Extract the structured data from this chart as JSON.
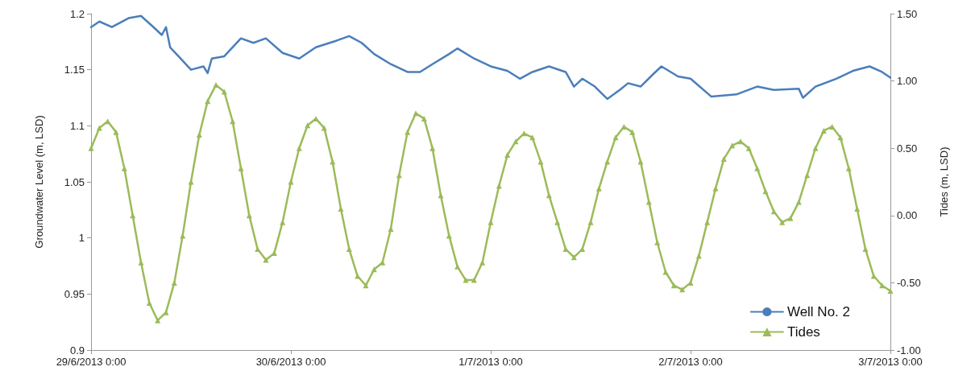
{
  "chart_data": {
    "type": "line",
    "ylabel": "Groundwater Level (m, LSD)",
    "y2label": "Tides (m, LSD)",
    "xlim": [
      "2013-06-29T00:00",
      "2013-07-03T00:00"
    ],
    "xticks": [
      {
        "value": "2013-06-29T00:00",
        "label": "29/6/2013 0:00"
      },
      {
        "value": "2013-06-30T00:00",
        "label": "30/6/2013 0:00"
      },
      {
        "value": "2013-07-01T00:00",
        "label": "1/7/2013 0:00"
      },
      {
        "value": "2013-07-02T00:00",
        "label": "2/7/2013 0:00"
      },
      {
        "value": "2013-07-03T00:00",
        "label": "3/7/2013 0:00"
      }
    ],
    "ylim": [
      0.9,
      1.2
    ],
    "yticks": [
      0.9,
      0.95,
      1,
      1.05,
      1.1,
      1.15,
      1.2
    ],
    "y2lim": [
      -1,
      1.5
    ],
    "y2ticks": [
      {
        "value": -1,
        "label": "-1.00"
      },
      {
        "value": -0.5,
        "label": "-0.50"
      },
      {
        "value": 0,
        "label": "0.00"
      },
      {
        "value": 0.5,
        "label": "0.50"
      },
      {
        "value": 1,
        "label": "1.00"
      },
      {
        "value": 1.5,
        "label": "1.50"
      }
    ],
    "grid": false,
    "legend": "bottom right",
    "series": [
      {
        "name": "Well No. 2",
        "color": "#4a7ebb",
        "marker": "none",
        "x": [
          "2013-06-29T00:00",
          "2013-06-29T01:00",
          "2013-06-29T02:30",
          "2013-06-29T04:30",
          "2013-06-29T06:00",
          "2013-06-29T07:30",
          "2013-06-29T08:30",
          "2013-06-29T09:00",
          "2013-06-29T09:30",
          "2013-06-29T10:30",
          "2013-06-29T12:00",
          "2013-06-29T13:30",
          "2013-06-29T14:00",
          "2013-06-29T14:30",
          "2013-06-29T16:00",
          "2013-06-29T18:00",
          "2013-06-29T19:30",
          "2013-06-29T21:00",
          "2013-06-29T23:00",
          "2013-06-30T01:00",
          "2013-06-30T03:00",
          "2013-06-30T05:30",
          "2013-06-30T07:00",
          "2013-06-30T08:30",
          "2013-06-30T10:00",
          "2013-06-30T12:00",
          "2013-06-30T14:00",
          "2013-06-30T15:30",
          "2013-06-30T17:00",
          "2013-06-30T19:00",
          "2013-06-30T20:00",
          "2013-06-30T22:00",
          "2013-07-01T00:00",
          "2013-07-01T02:00",
          "2013-07-01T03:30",
          "2013-07-01T05:00",
          "2013-07-01T07:00",
          "2013-07-01T09:00",
          "2013-07-01T10:00",
          "2013-07-01T11:00",
          "2013-07-01T12:30",
          "2013-07-01T14:00",
          "2013-07-01T15:30",
          "2013-07-01T16:30",
          "2013-07-01T18:00",
          "2013-07-01T19:30",
          "2013-07-01T20:30",
          "2013-07-01T22:30",
          "2013-07-02T00:00",
          "2013-07-02T02:30",
          "2013-07-02T05:30",
          "2013-07-02T08:00",
          "2013-07-02T10:00",
          "2013-07-02T13:00",
          "2013-07-02T13:30",
          "2013-07-02T15:00",
          "2013-07-02T17:30",
          "2013-07-02T19:30",
          "2013-07-02T21:30",
          "2013-07-02T23:00",
          "2013-07-03T00:00"
        ],
        "values": [
          1.188,
          1.193,
          1.188,
          1.196,
          1.198,
          1.188,
          1.181,
          1.188,
          1.17,
          1.162,
          1.15,
          1.153,
          1.147,
          1.16,
          1.162,
          1.178,
          1.174,
          1.178,
          1.165,
          1.16,
          1.17,
          1.176,
          1.18,
          1.174,
          1.164,
          1.155,
          1.148,
          1.148,
          1.155,
          1.164,
          1.169,
          1.16,
          1.153,
          1.149,
          1.142,
          1.148,
          1.153,
          1.148,
          1.135,
          1.142,
          1.135,
          1.124,
          1.132,
          1.138,
          1.135,
          1.146,
          1.153,
          1.144,
          1.142,
          1.126,
          1.128,
          1.135,
          1.132,
          1.133,
          1.125,
          1.135,
          1.142,
          1.149,
          1.153,
          1.148,
          1.143
        ]
      },
      {
        "name": "Tides",
        "color": "#9bbb59",
        "marker": "triangle",
        "axis": "y2",
        "x": [
          "2013-06-29T00:00",
          "2013-06-29T01:00",
          "2013-06-29T02:00",
          "2013-06-29T03:00",
          "2013-06-29T04:00",
          "2013-06-29T05:00",
          "2013-06-29T06:00",
          "2013-06-29T07:00",
          "2013-06-29T08:00",
          "2013-06-29T09:00",
          "2013-06-29T10:00",
          "2013-06-29T11:00",
          "2013-06-29T12:00",
          "2013-06-29T13:00",
          "2013-06-29T14:00",
          "2013-06-29T15:00",
          "2013-06-29T16:00",
          "2013-06-29T17:00",
          "2013-06-29T18:00",
          "2013-06-29T19:00",
          "2013-06-29T20:00",
          "2013-06-29T21:00",
          "2013-06-29T22:00",
          "2013-06-29T23:00",
          "2013-06-30T00:00",
          "2013-06-30T01:00",
          "2013-06-30T02:00",
          "2013-06-30T03:00",
          "2013-06-30T04:00",
          "2013-06-30T05:00",
          "2013-06-30T06:00",
          "2013-06-30T07:00",
          "2013-06-30T08:00",
          "2013-06-30T09:00",
          "2013-06-30T10:00",
          "2013-06-30T11:00",
          "2013-06-30T12:00",
          "2013-06-30T13:00",
          "2013-06-30T14:00",
          "2013-06-30T15:00",
          "2013-06-30T16:00",
          "2013-06-30T17:00",
          "2013-06-30T18:00",
          "2013-06-30T19:00",
          "2013-06-30T20:00",
          "2013-06-30T21:00",
          "2013-06-30T22:00",
          "2013-06-30T23:00",
          "2013-07-01T00:00",
          "2013-07-01T01:00",
          "2013-07-01T02:00",
          "2013-07-01T03:00",
          "2013-07-01T04:00",
          "2013-07-01T05:00",
          "2013-07-01T06:00",
          "2013-07-01T07:00",
          "2013-07-01T08:00",
          "2013-07-01T09:00",
          "2013-07-01T10:00",
          "2013-07-01T11:00",
          "2013-07-01T12:00",
          "2013-07-01T13:00",
          "2013-07-01T14:00",
          "2013-07-01T15:00",
          "2013-07-01T16:00",
          "2013-07-01T17:00",
          "2013-07-01T18:00",
          "2013-07-01T19:00",
          "2013-07-01T20:00",
          "2013-07-01T21:00",
          "2013-07-01T22:00",
          "2013-07-01T23:00",
          "2013-07-02T00:00",
          "2013-07-02T01:00",
          "2013-07-02T02:00",
          "2013-07-02T03:00",
          "2013-07-02T04:00",
          "2013-07-02T05:00",
          "2013-07-02T06:00",
          "2013-07-02T07:00",
          "2013-07-02T08:00",
          "2013-07-02T09:00",
          "2013-07-02T10:00",
          "2013-07-02T11:00",
          "2013-07-02T12:00",
          "2013-07-02T13:00",
          "2013-07-02T14:00",
          "2013-07-02T15:00",
          "2013-07-02T16:00",
          "2013-07-02T17:00",
          "2013-07-02T18:00",
          "2013-07-02T19:00",
          "2013-07-02T20:00",
          "2013-07-02T21:00",
          "2013-07-02T22:00",
          "2013-07-02T23:00",
          "2013-07-03T00:00"
        ],
        "values": [
          0.5,
          0.65,
          0.7,
          0.62,
          0.35,
          0.0,
          -0.35,
          -0.65,
          -0.78,
          -0.72,
          -0.5,
          -0.15,
          0.25,
          0.6,
          0.85,
          0.97,
          0.92,
          0.7,
          0.35,
          0.0,
          -0.25,
          -0.33,
          -0.28,
          -0.05,
          0.25,
          0.5,
          0.67,
          0.72,
          0.65,
          0.4,
          0.05,
          -0.25,
          -0.45,
          -0.52,
          -0.4,
          -0.35,
          -0.1,
          0.3,
          0.62,
          0.76,
          0.72,
          0.5,
          0.15,
          -0.15,
          -0.38,
          -0.48,
          -0.48,
          -0.35,
          -0.05,
          0.22,
          0.45,
          0.55,
          0.61,
          0.58,
          0.4,
          0.15,
          -0.05,
          -0.25,
          -0.31,
          -0.25,
          -0.05,
          0.2,
          0.4,
          0.58,
          0.66,
          0.62,
          0.4,
          0.1,
          -0.2,
          -0.42,
          -0.52,
          -0.55,
          -0.5,
          -0.3,
          -0.05,
          0.2,
          0.42,
          0.52,
          0.55,
          0.5,
          0.35,
          0.18,
          0.03,
          -0.05,
          -0.02,
          0.1,
          0.3,
          0.5,
          0.63,
          0.66,
          0.58,
          0.35,
          0.05,
          -0.25,
          -0.45,
          -0.52,
          -0.56
        ]
      }
    ]
  }
}
